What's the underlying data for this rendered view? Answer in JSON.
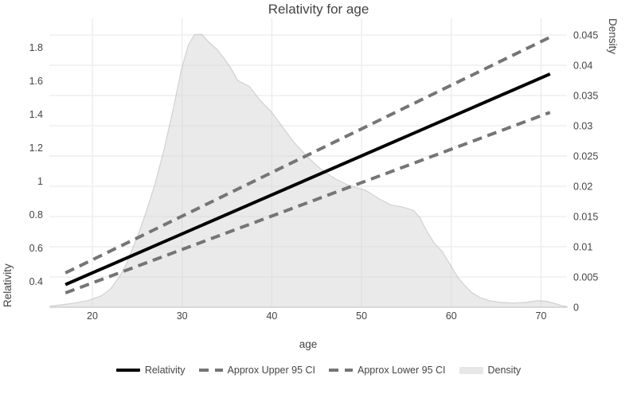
{
  "title": "Relativity for age",
  "axes": {
    "x": {
      "label": "age",
      "tick_labels": [
        "20",
        "30",
        "40",
        "50",
        "60",
        "70"
      ],
      "range": [
        15.2,
        72.9
      ]
    },
    "y_left": {
      "label": "Relativity",
      "tick_labels": [
        "0.4",
        "0.6",
        "0.8",
        "1",
        "1.2",
        "1.4",
        "1.6",
        "1.8"
      ],
      "range": [
        0.24,
        1.97
      ]
    },
    "y_right": {
      "label": "Density",
      "tick_labels": [
        "0",
        "0.005",
        "0.01",
        "0.015",
        "0.02",
        "0.025",
        "0.03",
        "0.035",
        "0.04",
        "0.045"
      ],
      "range": [
        0,
        0.0478
      ]
    }
  },
  "legend": [
    {
      "label": "Relativity",
      "swatch": "solid-black-line"
    },
    {
      "label": "Approx Upper 95 CI",
      "swatch": "dashed-gray-line"
    },
    {
      "label": "Approx Lower 95 CI",
      "swatch": "dashed-gray-line"
    },
    {
      "label": "Density",
      "swatch": "light-gray-fill"
    }
  ],
  "colors": {
    "relativity_line": "#000000",
    "ci_lines": "#757575",
    "density_fill": "#eaeaea",
    "density_edge": "#cccccc",
    "gridline": "#ebebeb",
    "text": "#444444",
    "background": "#ffffff"
  },
  "chart_data": {
    "type": "line",
    "title": "Relativity for age",
    "xlabel": "age",
    "ylabel_left": "Relativity",
    "ylabel_right": "Density",
    "xlim": [
      15.2,
      72.9
    ],
    "ylim_left": [
      0.24,
      1.97
    ],
    "ylim_right": [
      0,
      0.0478
    ],
    "grid": true,
    "legend_position": "bottom",
    "series": [
      {
        "name": "Relativity",
        "axis": "left",
        "style": "solid",
        "color": "#000000",
        "x": [
          17,
          71
        ],
        "y": [
          0.38,
          1.64
        ]
      },
      {
        "name": "Approx Upper 95 CI",
        "axis": "left",
        "style": "dashed",
        "color": "#757575",
        "x": [
          17,
          71
        ],
        "y": [
          0.45,
          1.86
        ]
      },
      {
        "name": "Approx Lower 95 CI",
        "axis": "left",
        "style": "dashed",
        "color": "#757575",
        "x": [
          17,
          71
        ],
        "y": [
          0.33,
          1.41
        ]
      }
    ],
    "density": {
      "name": "Density",
      "axis": "right",
      "points": [
        [
          15.3,
          0.0002
        ],
        [
          16.5,
          0.0004
        ],
        [
          18,
          0.0007
        ],
        [
          19.5,
          0.0011
        ],
        [
          21,
          0.0019
        ],
        [
          22,
          0.003
        ],
        [
          23,
          0.005
        ],
        [
          23.8,
          0.0072
        ],
        [
          24.5,
          0.0098
        ],
        [
          25.3,
          0.0128
        ],
        [
          26,
          0.0158
        ],
        [
          27,
          0.0205
        ],
        [
          28,
          0.0262
        ],
        [
          29,
          0.0327
        ],
        [
          29.9,
          0.0392
        ],
        [
          30.7,
          0.0434
        ],
        [
          31.4,
          0.0451
        ],
        [
          32.2,
          0.0451
        ],
        [
          33,
          0.0438
        ],
        [
          33.9,
          0.0426
        ],
        [
          34.8,
          0.0409
        ],
        [
          35.4,
          0.0396
        ],
        [
          36.2,
          0.0375
        ],
        [
          37.5,
          0.0365
        ],
        [
          38.7,
          0.0342
        ],
        [
          39.9,
          0.0324
        ],
        [
          41.2,
          0.0298
        ],
        [
          42.5,
          0.0272
        ],
        [
          44,
          0.0248
        ],
        [
          45.5,
          0.0228
        ],
        [
          47,
          0.0213
        ],
        [
          48.5,
          0.0202
        ],
        [
          50.5,
          0.0193
        ],
        [
          52,
          0.0179
        ],
        [
          53.3,
          0.0169
        ],
        [
          54.5,
          0.0166
        ],
        [
          55.8,
          0.016
        ],
        [
          56.5,
          0.0148
        ],
        [
          57.3,
          0.0125
        ],
        [
          58.1,
          0.0106
        ],
        [
          59,
          0.0092
        ],
        [
          59.9,
          0.007
        ],
        [
          60.7,
          0.005
        ],
        [
          61.5,
          0.0036
        ],
        [
          62.3,
          0.0024
        ],
        [
          63.2,
          0.0016
        ],
        [
          64.2,
          0.0011
        ],
        [
          65.5,
          0.0008
        ],
        [
          67,
          0.0007
        ],
        [
          68.3,
          0.0008
        ],
        [
          69.6,
          0.0011
        ],
        [
          70.6,
          0.001
        ],
        [
          71.6,
          0.0006
        ],
        [
          72.2,
          0.0003
        ],
        [
          72.9,
          0.0001
        ]
      ]
    }
  }
}
